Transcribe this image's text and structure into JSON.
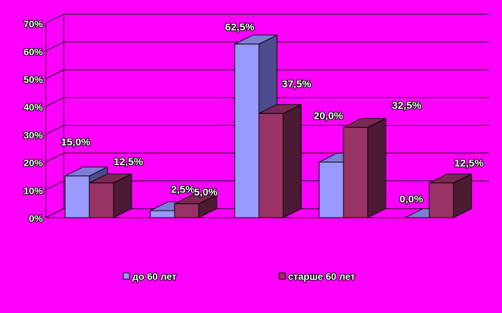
{
  "chart_data": {
    "type": "bar",
    "categories": [
      "",
      "",
      "",
      "",
      ""
    ],
    "series": [
      {
        "name": "до 60 лет",
        "values": [
          15.0,
          2.5,
          62.5,
          20.0,
          0.0
        ],
        "labels": [
          "15,0%",
          "2,5%",
          "62,5%",
          "20,0%",
          "0,0%"
        ]
      },
      {
        "name": "старше 60 лет",
        "values": [
          12.5,
          5.0,
          37.5,
          32.5,
          12.5
        ],
        "labels": [
          "12,5%",
          "5,0%",
          "37,5%",
          "32,5%",
          "12,5%"
        ]
      }
    ],
    "yticks": [
      "0%",
      "10%",
      "20%",
      "30%",
      "40%",
      "50%",
      "60%",
      "70%"
    ],
    "ylim": [
      0,
      70
    ],
    "grid": true,
    "legend": "bottom",
    "colors": {
      "background": "#FF00FF",
      "series1_front": "#9999FF",
      "series1_top": "#7E7ED8",
      "series1_side": "#4C4C8C",
      "series2_front": "#993366",
      "series2_top": "#7A2952",
      "series2_side": "#4D1A33"
    }
  }
}
